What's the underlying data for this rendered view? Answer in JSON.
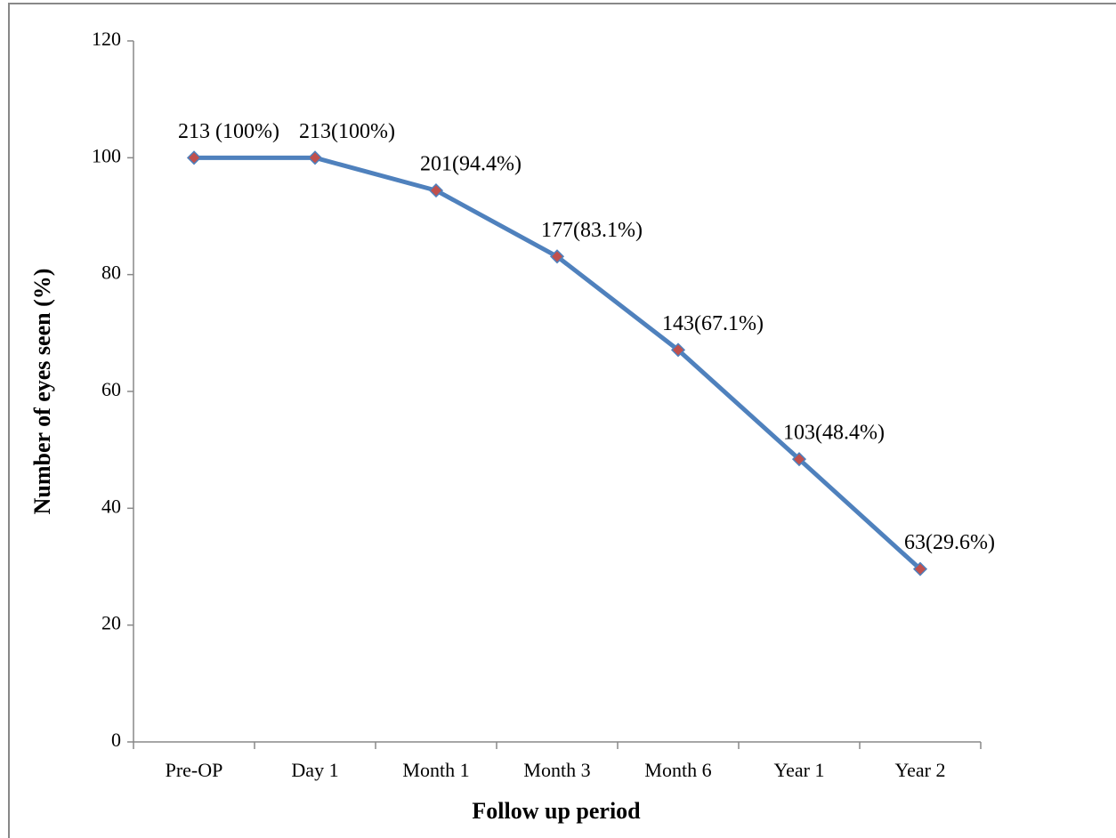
{
  "chart_data": {
    "type": "line",
    "x_label": "Follow up period",
    "y_label": "Number of eyes seen (%)",
    "categories": [
      "Pre-OP",
      "Day 1",
      "Month 1",
      "Month 3",
      "Month 6",
      "Year 1",
      "Year 2"
    ],
    "values": [
      100,
      100,
      94.4,
      83.1,
      67.1,
      48.4,
      29.6
    ],
    "value_labels": [
      "213 (100%)",
      "213(100%)",
      "201(94.4%)",
      "177(83.1%)",
      "143(67.1%)",
      "103(48.4%)",
      "63(29.6%)"
    ],
    "color": "#4f81bd",
    "marker_color": "#c0504d",
    "ylim": [
      0,
      120
    ],
    "yticks": [
      0,
      20,
      40,
      60,
      80,
      100,
      120
    ],
    "grid": false
  }
}
